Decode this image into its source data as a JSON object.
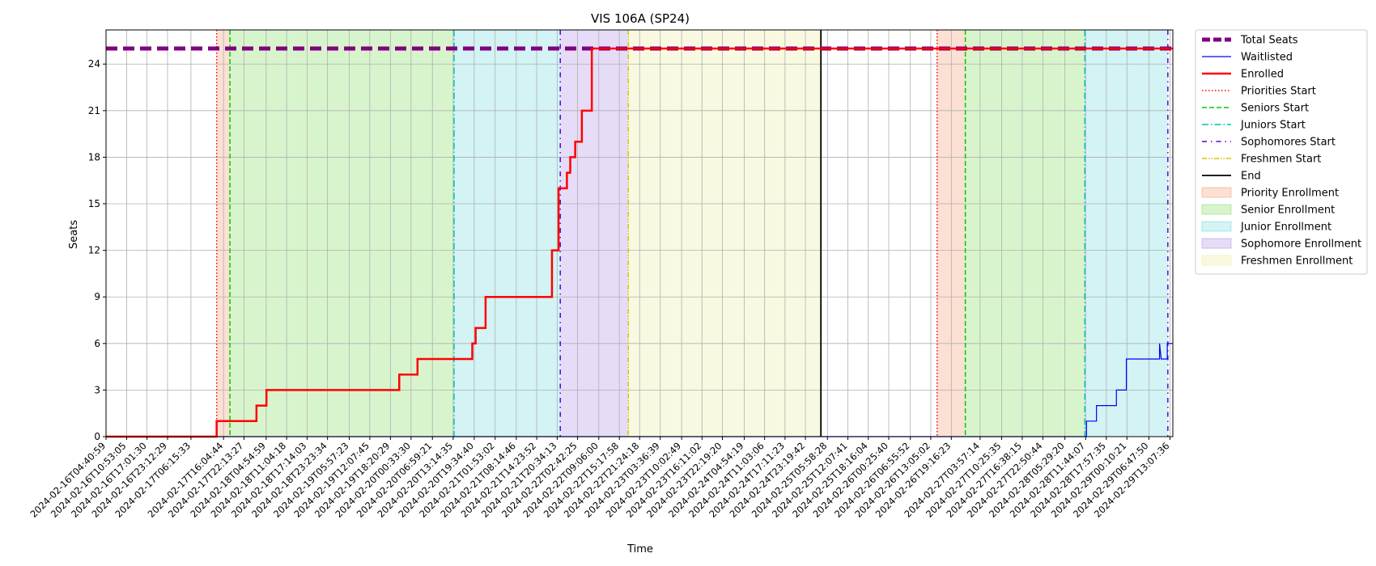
{
  "chart_data": {
    "type": "line",
    "title": "VIS 106A (SP24)",
    "xlabel": "Time",
    "ylabel": "Seats",
    "xlim": [
      "2024-02-16T04:40:59",
      "2024-02-29T14:00:00"
    ],
    "ylim": [
      0,
      26.2
    ],
    "yticks": [
      0,
      3,
      6,
      9,
      12,
      15,
      18,
      21,
      24
    ],
    "xticks": [
      "2024-02-16T04:40:59",
      "2024-02-16T10:53:05",
      "2024-02-16T17:01:30",
      "2024-02-16T23:12:29",
      "2024-02-17T06:15:33",
      "2024-02-17T16:04:44",
      "2024-02-17T22:13:27",
      "2024-02-18T04:54:59",
      "2024-02-18T11:04:18",
      "2024-02-18T17:14:03",
      "2024-02-18T23:23:34",
      "2024-02-19T05:57:23",
      "2024-02-19T12:07:45",
      "2024-02-19T18:20:29",
      "2024-02-20T00:33:30",
      "2024-02-20T06:59:21",
      "2024-02-20T13:14:35",
      "2024-02-20T19:34:40",
      "2024-02-21T01:53:02",
      "2024-02-21T08:14:46",
      "2024-02-21T14:23:52",
      "2024-02-21T20:34:13",
      "2024-02-22T02:42:25",
      "2024-02-22T09:06:00",
      "2024-02-22T15:17:58",
      "2024-02-22T21:24:18",
      "2024-02-23T03:36:39",
      "2024-02-23T10:02:49",
      "2024-02-23T16:11:02",
      "2024-02-23T22:19:20",
      "2024-02-24T04:54:19",
      "2024-02-24T11:03:06",
      "2024-02-24T17:11:23",
      "2024-02-24T23:19:42",
      "2024-02-25T05:58:28",
      "2024-02-25T12:07:41",
      "2024-02-25T18:16:04",
      "2024-02-26T00:25:40",
      "2024-02-26T06:55:52",
      "2024-02-26T13:05:02",
      "2024-02-26T19:16:23",
      "2024-02-27T03:57:14",
      "2024-02-27T10:25:35",
      "2024-02-27T16:38:15",
      "2024-02-27T22:50:44",
      "2024-02-28T05:29:20",
      "2024-02-28T11:44:07",
      "2024-02-28T17:57:35",
      "2024-02-29T00:10:21",
      "2024-02-29T06:47:50",
      "2024-02-29T13:07:36"
    ],
    "grid": true,
    "legend_position": "outside-right",
    "series": [
      {
        "name": "Total Seats",
        "color": "#800080",
        "style": "dashed-thick",
        "points": [
          [
            "2024-02-16T04:40:59",
            25
          ],
          [
            "2024-02-29T14:00:00",
            25
          ]
        ]
      },
      {
        "name": "Waitlisted",
        "color": "#0000ff",
        "style": "solid-thin",
        "points": [
          [
            "2024-02-16T04:40:59",
            0
          ],
          [
            "2024-02-28T12:00:00",
            0
          ],
          [
            "2024-02-28T12:00:00",
            1
          ],
          [
            "2024-02-28T15:00:00",
            1
          ],
          [
            "2024-02-28T15:00:00",
            2
          ],
          [
            "2024-02-28T21:00:00",
            2
          ],
          [
            "2024-02-28T21:00:00",
            3
          ],
          [
            "2024-02-29T00:00:00",
            3
          ],
          [
            "2024-02-29T00:00:00",
            5
          ],
          [
            "2024-02-29T10:00:00",
            5
          ],
          [
            "2024-02-29T10:00:00",
            6
          ],
          [
            "2024-02-29T10:30:00",
            5
          ],
          [
            "2024-02-29T12:20:00",
            5
          ],
          [
            "2024-02-29T12:20:00",
            6
          ],
          [
            "2024-02-29T14:00:00",
            6
          ]
        ]
      },
      {
        "name": "Enrolled",
        "color": "#ff0000",
        "style": "solid-thick",
        "points": [
          [
            "2024-02-16T04:40:59",
            0
          ],
          [
            "2024-02-17T14:00:00",
            0
          ],
          [
            "2024-02-17T14:00:00",
            1
          ],
          [
            "2024-02-18T02:00:00",
            1
          ],
          [
            "2024-02-18T02:00:00",
            2
          ],
          [
            "2024-02-18T05:00:00",
            2
          ],
          [
            "2024-02-18T05:00:00",
            3
          ],
          [
            "2024-02-19T21:00:00",
            3
          ],
          [
            "2024-02-19T21:00:00",
            4
          ],
          [
            "2024-02-20T02:30:00",
            4
          ],
          [
            "2024-02-20T02:30:00",
            5
          ],
          [
            "2024-02-20T19:00:00",
            5
          ],
          [
            "2024-02-20T19:00:00",
            6
          ],
          [
            "2024-02-20T20:00:00",
            6
          ],
          [
            "2024-02-20T20:00:00",
            7
          ],
          [
            "2024-02-20T23:00:00",
            7
          ],
          [
            "2024-02-20T23:00:00",
            9
          ],
          [
            "2024-02-21T19:00:00",
            9
          ],
          [
            "2024-02-21T19:00:00",
            12
          ],
          [
            "2024-02-21T21:00:00",
            12
          ],
          [
            "2024-02-21T21:00:00",
            16
          ],
          [
            "2024-02-21T23:30:00",
            16
          ],
          [
            "2024-02-21T23:30:00",
            17
          ],
          [
            "2024-02-22T00:30:00",
            17
          ],
          [
            "2024-02-22T00:30:00",
            18
          ],
          [
            "2024-02-22T02:00:00",
            18
          ],
          [
            "2024-02-22T02:00:00",
            19
          ],
          [
            "2024-02-22T04:00:00",
            19
          ],
          [
            "2024-02-22T04:00:00",
            21
          ],
          [
            "2024-02-22T07:00:00",
            21
          ],
          [
            "2024-02-22T07:00:00",
            25
          ],
          [
            "2024-02-29T14:00:00",
            25
          ]
        ]
      }
    ],
    "vlines": [
      {
        "name": "Priorities Start",
        "color": "#ff0000",
        "style": "dotted",
        "times": [
          "2024-02-17T14:00:00",
          "2024-02-26T15:00:00"
        ]
      },
      {
        "name": "Seniors Start",
        "color": "#00cc00",
        "style": "dashed",
        "times": [
          "2024-02-17T18:00:00",
          "2024-02-26T23:30:00"
        ]
      },
      {
        "name": "Juniors Start",
        "color": "#00bfbf",
        "style": "dashdot",
        "times": [
          "2024-02-20T13:30:00",
          "2024-02-28T11:30:00"
        ]
      },
      {
        "name": "Sophomores Start",
        "color": "#5500dd",
        "style": "loosedashdot",
        "times": [
          "2024-02-21T21:30:00",
          "2024-02-29T12:30:00"
        ]
      },
      {
        "name": "Freshmen Start",
        "color": "#d4c800",
        "style": "dashdotdot",
        "times": [
          "2024-02-22T18:00:00"
        ]
      },
      {
        "name": "End",
        "color": "#000000",
        "style": "solid",
        "times": [
          "2024-02-25T04:00:00"
        ]
      }
    ],
    "spans": [
      {
        "name": "Priority Enrollment",
        "color": "#f4a582",
        "ranges": [
          [
            "2024-02-17T14:00:00",
            "2024-02-17T18:00:00"
          ],
          [
            "2024-02-26T15:00:00",
            "2024-02-26T23:30:00"
          ]
        ]
      },
      {
        "name": "Senior Enrollment",
        "color": "#90e070",
        "ranges": [
          [
            "2024-02-17T18:00:00",
            "2024-02-20T13:30:00"
          ],
          [
            "2024-02-26T23:30:00",
            "2024-02-28T11:30:00"
          ]
        ]
      },
      {
        "name": "Junior Enrollment",
        "color": "#80dde0",
        "ranges": [
          [
            "2024-02-20T13:30:00",
            "2024-02-21T21:30:00"
          ],
          [
            "2024-02-28T11:30:00",
            "2024-02-29T12:30:00"
          ]
        ]
      },
      {
        "name": "Sophomore Enrollment",
        "color": "#b89ae8",
        "ranges": [
          [
            "2024-02-21T21:30:00",
            "2024-02-22T18:00:00"
          ]
        ]
      },
      {
        "name": "Freshmen Enrollment",
        "color": "#eeeeaa",
        "ranges": [
          [
            "2024-02-22T18:00:00",
            "2024-02-25T04:00:00"
          ]
        ]
      }
    ],
    "legend": [
      {
        "label": "Total Seats",
        "kind": "line",
        "color": "#800080",
        "style": "dashed-thick"
      },
      {
        "label": "Waitlisted",
        "kind": "line",
        "color": "#0000ff",
        "style": "solid-thin"
      },
      {
        "label": "Enrolled",
        "kind": "line",
        "color": "#ff0000",
        "style": "solid-thick"
      },
      {
        "label": "Priorities Start",
        "kind": "line",
        "color": "#ff0000",
        "style": "dotted"
      },
      {
        "label": "Seniors Start",
        "kind": "line",
        "color": "#00cc00",
        "style": "dashed"
      },
      {
        "label": "Juniors Start",
        "kind": "line",
        "color": "#00bfbf",
        "style": "dashdot"
      },
      {
        "label": "Sophomores Start",
        "kind": "line",
        "color": "#5500dd",
        "style": "loosedashdot"
      },
      {
        "label": "Freshmen Start",
        "kind": "line",
        "color": "#d4c800",
        "style": "dashdotdot"
      },
      {
        "label": "End",
        "kind": "line",
        "color": "#000000",
        "style": "solid"
      },
      {
        "label": "Priority Enrollment",
        "kind": "patch",
        "color": "#f4a582"
      },
      {
        "label": "Senior Enrollment",
        "kind": "patch",
        "color": "#90e070"
      },
      {
        "label": "Junior Enrollment",
        "kind": "patch",
        "color": "#80dde0"
      },
      {
        "label": "Sophomore Enrollment",
        "kind": "patch",
        "color": "#b89ae8"
      },
      {
        "label": "Freshmen Enrollment",
        "kind": "patch",
        "color": "#eeeeaa"
      }
    ]
  }
}
